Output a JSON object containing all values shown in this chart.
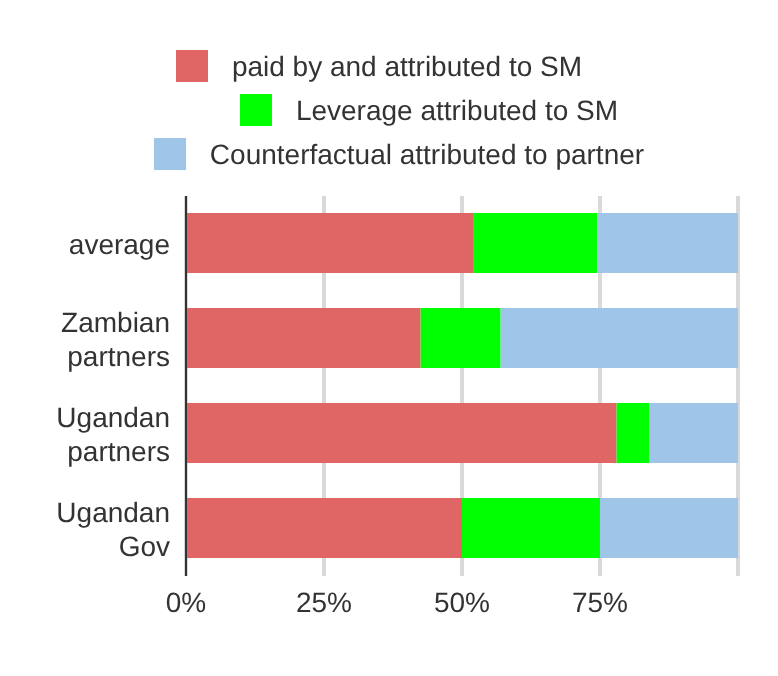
{
  "chart_data": {
    "type": "bar",
    "orientation": "horizontal",
    "stacked": true,
    "categories": [
      "average",
      "Zambian partners",
      "Ugandan partners",
      "Ugandan Gov"
    ],
    "series": [
      {
        "name": "paid by and attributed to SM",
        "color": "#e06666",
        "values": [
          52,
          42.5,
          78,
          50
        ]
      },
      {
        "name": "Leverage attributed to SM",
        "color": "#00ff00",
        "values": [
          22.5,
          14.5,
          6,
          25
        ]
      },
      {
        "name": "Counterfactual attributed to partner",
        "color": "#9fc5e8",
        "values": [
          25.5,
          43,
          16,
          25
        ]
      }
    ],
    "xlim": [
      0,
      100
    ],
    "xticks": [
      {
        "value": 0,
        "label": "0%"
      },
      {
        "value": 25,
        "label": "25%"
      },
      {
        "value": 50,
        "label": "50%"
      },
      {
        "value": 75,
        "label": "75%"
      },
      {
        "value": 100,
        "label": null
      }
    ],
    "grid": "x",
    "legend": "top"
  }
}
